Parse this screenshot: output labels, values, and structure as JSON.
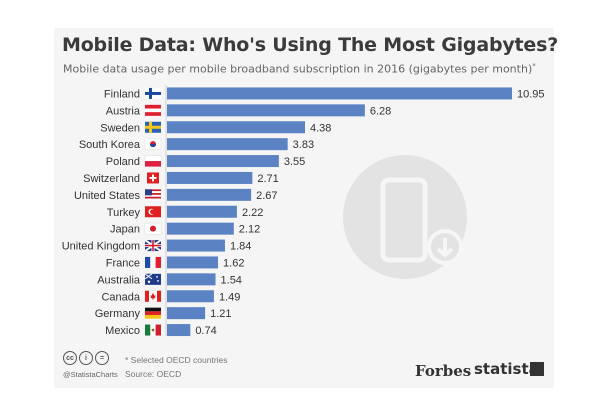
{
  "header": {
    "title": "Mobile Data: Who's Using The Most Gigabytes?",
    "subtitle": "Mobile data usage per mobile broadband subscription in 2016 (gigabytes per month)",
    "subtitle_mark": "*"
  },
  "footer": {
    "footnote": "* Selected OECD countries",
    "source": "Source: OECD",
    "handle": "@StatistaCharts",
    "forbes": "Forbes",
    "statista": "statista"
  },
  "colors": {
    "bar": "#5b83c4",
    "label": "#333333",
    "background": "#f5f5f5"
  },
  "icons": [
    "creative-commons-icon",
    "attribution-icon",
    "no-derivatives-icon",
    "phone-download-icon"
  ],
  "chart_data": {
    "type": "bar",
    "orientation": "horizontal",
    "title": "Mobile Data: Who's Using The Most Gigabytes?",
    "subtitle": "Mobile data usage per mobile broadband subscription in 2016 (gigabytes per month)*",
    "categories": [
      "Finland",
      "Austria",
      "Sweden",
      "South Korea",
      "Poland",
      "Switzerland",
      "United States",
      "Turkey",
      "Japan",
      "United Kingdom",
      "France",
      "Australia",
      "Canada",
      "Germany",
      "Mexico"
    ],
    "values": [
      10.95,
      6.28,
      4.38,
      3.83,
      3.55,
      2.71,
      2.67,
      2.22,
      2.12,
      1.84,
      1.62,
      1.54,
      1.49,
      1.21,
      0.74
    ],
    "value_labels": [
      "10.95",
      "6.28",
      "4.38",
      "3.83",
      "3.55",
      "2.71",
      "2.67",
      "2.22",
      "2.12",
      "1.84",
      "1.62",
      "1.54",
      "1.49",
      "1.21",
      "0.74"
    ],
    "flags": [
      "finland-flag-icon",
      "austria-flag-icon",
      "sweden-flag-icon",
      "south-korea-flag-icon",
      "poland-flag-icon",
      "switzerland-flag-icon",
      "united-states-flag-icon",
      "turkey-flag-icon",
      "japan-flag-icon",
      "united-kingdom-flag-icon",
      "france-flag-icon",
      "australia-flag-icon",
      "canada-flag-icon",
      "germany-flag-icon",
      "mexico-flag-icon"
    ],
    "xlim": [
      0,
      10.95
    ],
    "grid": false,
    "legend": "none"
  }
}
